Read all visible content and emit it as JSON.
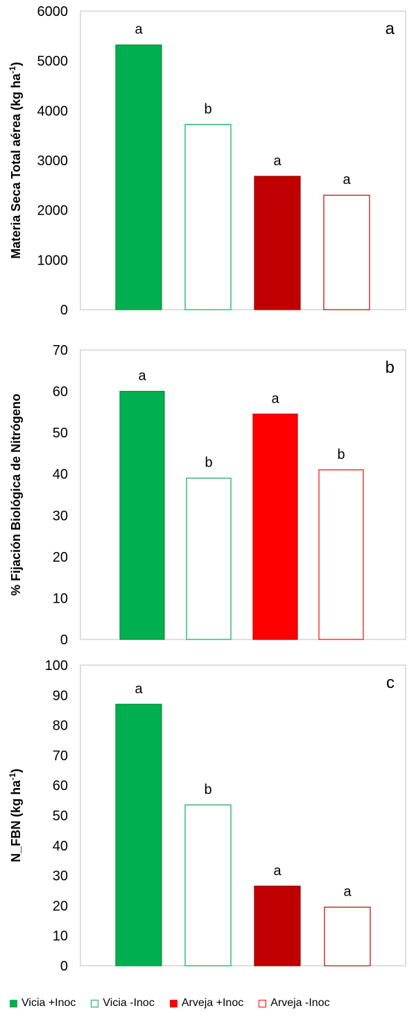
{
  "chart_data": [
    {
      "type": "bar",
      "panel_label": "a",
      "ylabel_main": "Materia Seca Total aérea (kg ha",
      "ylabel_sup": "-1",
      "ylabel_tail": ")",
      "ylim": [
        0,
        6000
      ],
      "yticks": [
        "0",
        "1000",
        "2000",
        "3000",
        "4000",
        "5000",
        "6000"
      ],
      "grid": false,
      "categories": [
        "Vicia +Inoc",
        "Vicia -Inoc",
        "Arveja +Inoc",
        "Arveja -Inoc"
      ],
      "values": [
        5320,
        3720,
        2680,
        2300
      ],
      "letters": [
        "a",
        "b",
        "a",
        "a"
      ],
      "fills": [
        "#00b050",
        "#ffffff",
        "#c00000",
        "#ffffff"
      ],
      "strokes": [
        "#008f40",
        "#00b050",
        "#9c0000",
        "#c00000"
      ]
    },
    {
      "type": "bar",
      "panel_label": "b",
      "ylabel_main": "% Fijación Biológica de Nitrógeno",
      "ylabel_sup": "",
      "ylabel_tail": "",
      "ylim": [
        0,
        70
      ],
      "yticks": [
        "0",
        "10",
        "20",
        "30",
        "40",
        "50",
        "60",
        "70"
      ],
      "grid": false,
      "categories": [
        "Vicia +Inoc",
        "Vicia -Inoc",
        "Arveja +Inoc",
        "Arveja -Inoc"
      ],
      "values": [
        60,
        39,
        54.5,
        41
      ],
      "letters": [
        "a",
        "b",
        "a",
        "b"
      ],
      "fills": [
        "#00b050",
        "#ffffff",
        "#ff0000",
        "#ffffff"
      ],
      "strokes": [
        "#008f40",
        "#00b050",
        "#cc0000",
        "#ff0000"
      ]
    },
    {
      "type": "bar",
      "panel_label": "c",
      "ylabel_main": "N_FBN (kg ha",
      "ylabel_sup": "-1",
      "ylabel_tail": ")",
      "ylim": [
        0,
        100
      ],
      "yticks": [
        "0",
        "10",
        "20",
        "30",
        "40",
        "50",
        "60",
        "70",
        "80",
        "90",
        "100"
      ],
      "grid": false,
      "categories": [
        "Vicia +Inoc",
        "Vicia -Inoc",
        "Arveja +Inoc",
        "Arveja -Inoc"
      ],
      "values": [
        87,
        53.5,
        26.5,
        19.5
      ],
      "letters": [
        "a",
        "b",
        "a",
        "a"
      ],
      "fills": [
        "#00b050",
        "#ffffff",
        "#c00000",
        "#ffffff"
      ],
      "strokes": [
        "#008f40",
        "#00b050",
        "#9c0000",
        "#c00000"
      ]
    }
  ],
  "legend": {
    "placement": "bottom",
    "items": [
      {
        "label": "Vicia +Inoc",
        "fill": "#00b050",
        "stroke": "#00b050"
      },
      {
        "label": "Vicia -Inoc",
        "fill": "#ffffff",
        "stroke": "#00b050"
      },
      {
        "label": "Arveja +Inoc",
        "fill": "#ff0000",
        "stroke": "#ff0000"
      },
      {
        "label": "Arveja -Inoc",
        "fill": "#ffffff",
        "stroke": "#ff0000"
      }
    ]
  }
}
